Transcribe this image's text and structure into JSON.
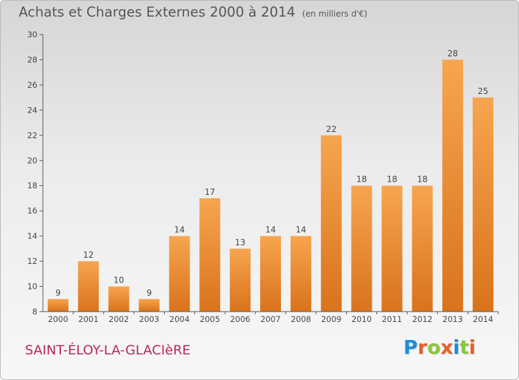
{
  "header": {
    "title": "Achats et Charges Externes 2000 à 2014",
    "subtitle": "(en milliers d'€)"
  },
  "footer": {
    "city": "SAINT-ÉLOY-LA-GLACIèRE",
    "logo_letters": [
      "P",
      "r",
      "o",
      "x",
      "i",
      "t",
      "i"
    ],
    "logo_colors": [
      "#1d8fd8",
      "#e8602a",
      "#8cc63f",
      "#e8602a",
      "#1d8fd8",
      "#8cc63f",
      "#e8602a"
    ]
  },
  "chart_data": {
    "type": "bar",
    "title": "Achats et Charges Externes 2000 à 2014",
    "subtitle": "(en milliers d'€)",
    "categories": [
      "2000",
      "2001",
      "2002",
      "2003",
      "2004",
      "2005",
      "2006",
      "2007",
      "2008",
      "2009",
      "2010",
      "2011",
      "2012",
      "2013",
      "2014"
    ],
    "values": [
      9,
      12,
      10,
      9,
      14,
      17,
      13,
      14,
      14,
      22,
      18,
      18,
      18,
      28,
      25
    ],
    "data_labels": [
      "9",
      "12",
      "10",
      "9",
      "14",
      "17",
      "13",
      "14",
      "14",
      "22",
      "18",
      "18",
      "18",
      "28",
      "25"
    ],
    "yticks": [
      8,
      10,
      12,
      14,
      16,
      18,
      20,
      22,
      24,
      26,
      28,
      30
    ],
    "ylim": [
      8,
      30
    ],
    "grid": false,
    "bar_color_light": "#f7a54f",
    "bar_color_dark": "#d9731c",
    "axis_color": "#555555"
  }
}
